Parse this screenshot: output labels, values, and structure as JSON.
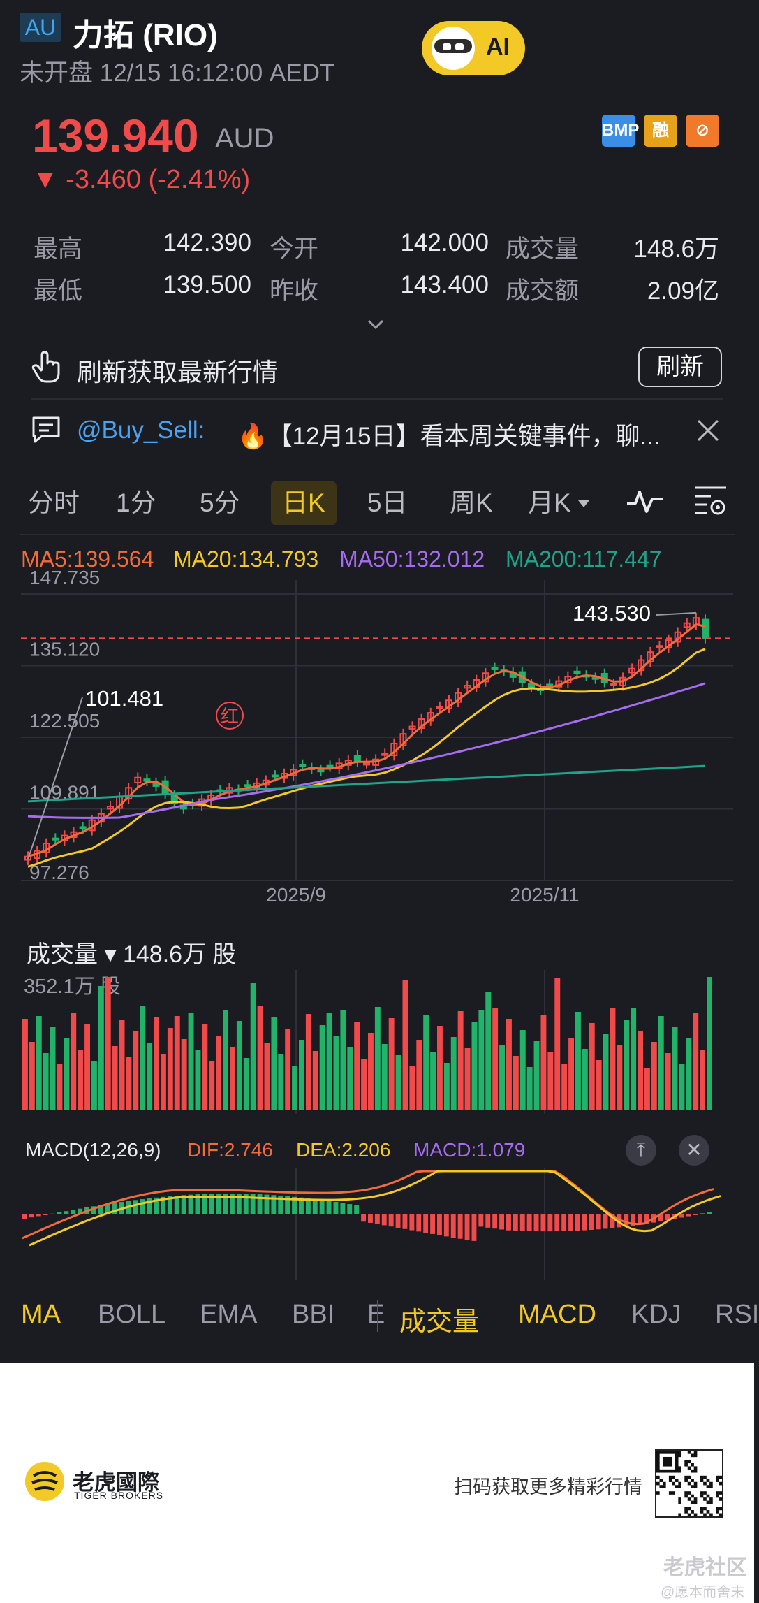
{
  "header": {
    "market_badge": "AU",
    "title": "力拓 (RIO)",
    "status_line": "未开盘 12/15 16:12:00 AEDT",
    "ai_label": "AI"
  },
  "quote": {
    "price": "139.940",
    "currency": "AUD",
    "change": "▼ -3.460 (-2.41%)",
    "tags": [
      "BMP",
      "融",
      "⊘"
    ],
    "tag_colors": [
      "#3a8ee6",
      "#e6a21a",
      "#f07a2a"
    ]
  },
  "stats": {
    "high_label": "最高",
    "high_value": "142.390",
    "low_label": "最低",
    "low_value": "139.500",
    "open_label": "今开",
    "open_value": "142.000",
    "prev_close_label": "昨收",
    "prev_close_value": "143.400",
    "volume_label": "成交量",
    "volume_value": "148.6万",
    "turnover_label": "成交额",
    "turnover_value": "2.09亿"
  },
  "refresh": {
    "text": "刷新获取最新行情",
    "button": "刷新"
  },
  "news": {
    "user": "@Buy_Sell:",
    "text": "🔥【12月15日】看本周关键事件，聊..."
  },
  "tabs": [
    "分时",
    "1分",
    "5分",
    "日K",
    "5日",
    "周K",
    "月K"
  ],
  "active_tab": "日K",
  "ma_legend": {
    "ma5": "MA5:139.564",
    "ma20": "MA20:134.793",
    "ma50": "MA50:132.012",
    "ma200": "MA200:117.447"
  },
  "colors": {
    "up": "#f04a4a",
    "down": "#22b36b",
    "ma5": "#f26b3a",
    "ma20": "#f2c927",
    "ma50": "#a66cf0",
    "ma200": "#21a38a",
    "accent": "#f2c927"
  },
  "chart_data": {
    "type": "candlestick",
    "y_ticks": [
      "147.735",
      "135.120",
      "122.505",
      "109.891",
      "97.276"
    ],
    "ylim": [
      97.276,
      147.735
    ],
    "x_ticks": [
      "2025/9",
      "2025/11"
    ],
    "annotations": {
      "high_label": "143.530",
      "low_label": "101.481",
      "marker": "红"
    },
    "last_price_line": 139.94,
    "close_series": [
      101.5,
      102.5,
      103.8,
      104.6,
      105.2,
      105.8,
      106.4,
      107.9,
      109.0,
      110.3,
      112.0,
      113.6,
      115.4,
      114.8,
      113.9,
      112.6,
      110.8,
      109.9,
      110.7,
      111.6,
      112.3,
      113.0,
      113.6,
      113.2,
      113.9,
      114.4,
      114.9,
      115.6,
      116.1,
      116.8,
      117.4,
      117.0,
      116.6,
      117.3,
      117.9,
      118.4,
      118.2,
      117.9,
      118.6,
      119.6,
      121.4,
      123.1,
      124.4,
      125.7,
      126.8,
      127.9,
      129.0,
      130.3,
      131.6,
      132.6,
      133.8,
      134.6,
      134.2,
      133.1,
      132.2,
      131.3,
      130.9,
      131.7,
      132.4,
      133.2,
      133.7,
      133.3,
      132.8,
      132.2,
      131.9,
      133.0,
      134.6,
      136.1,
      137.5,
      138.6,
      139.6,
      141.0,
      142.6,
      143.53,
      139.94
    ],
    "ma_series": {
      "MA20_end": 134.793,
      "MA50_end": 132.012,
      "MA200_end": 117.447
    },
    "volume": {
      "label": "成交量",
      "current": "148.6万 股",
      "max_label": "352.1万 股"
    },
    "macd": {
      "label": "MACD(12,26,9)",
      "dif": "DIF:2.746",
      "dea": "DEA:2.206",
      "macd": "MACD:1.079"
    }
  },
  "indicator_tabs_left": [
    "MA",
    "BOLL",
    "EMA",
    "BBI",
    "E"
  ],
  "indicator_tabs_right": [
    "成交量",
    "MACD",
    "KDJ",
    "RSI"
  ],
  "footer": {
    "brand": "老虎國際",
    "brand_en": "TIGER BROKERS",
    "text": "扫码获取更多精彩行情",
    "watermark": "老虎社区",
    "watermark_sub": "@愿本而舍末"
  }
}
